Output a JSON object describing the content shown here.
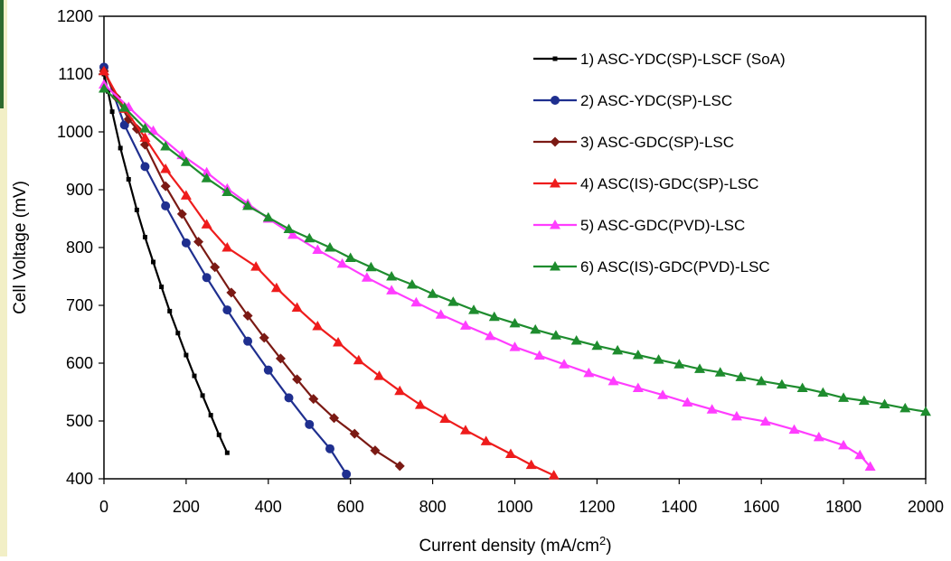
{
  "chart_data": {
    "type": "line",
    "xlabel": "Current density (mA/cm",
    "xlabel_sup": "2",
    "xlabel_end": ")",
    "ylabel": "Cell Voltage (mV)",
    "xlim": [
      0,
      2000
    ],
    "ylim": [
      400,
      1200
    ],
    "xticks": [
      0,
      200,
      400,
      600,
      800,
      1000,
      1200,
      1400,
      1600,
      1800,
      2000
    ],
    "yticks": [
      400,
      500,
      600,
      700,
      800,
      900,
      1000,
      1100,
      1200
    ],
    "grid": false,
    "legend_position": "top-right",
    "series": [
      {
        "name": "1) ASC-YDC(SP)-LSCF (SoA)",
        "color": "#000000",
        "marker": "square",
        "points": [
          [
            0,
            1100
          ],
          [
            10,
            1070
          ],
          [
            20,
            1035
          ],
          [
            40,
            972
          ],
          [
            60,
            918
          ],
          [
            80,
            865
          ],
          [
            100,
            818
          ],
          [
            120,
            775
          ],
          [
            140,
            732
          ],
          [
            160,
            690
          ],
          [
            180,
            652
          ],
          [
            200,
            614
          ],
          [
            220,
            578
          ],
          [
            240,
            544
          ],
          [
            260,
            510
          ],
          [
            280,
            476
          ],
          [
            300,
            445
          ]
        ]
      },
      {
        "name": "2) ASC-YDC(SP)-LSC",
        "color": "#1f2f8f",
        "marker": "circle",
        "points": [
          [
            0,
            1112
          ],
          [
            50,
            1012
          ],
          [
            100,
            940
          ],
          [
            150,
            872
          ],
          [
            200,
            808
          ],
          [
            250,
            748
          ],
          [
            300,
            692
          ],
          [
            350,
            638
          ],
          [
            400,
            588
          ],
          [
            450,
            540
          ],
          [
            500,
            494
          ],
          [
            550,
            452
          ],
          [
            590,
            408
          ]
        ]
      },
      {
        "name": "3) ASC-GDC(SP)-LSC",
        "color": "#7b1a14",
        "marker": "diamond",
        "points": [
          [
            0,
            1105
          ],
          [
            30,
            1060
          ],
          [
            60,
            1022
          ],
          [
            80,
            1005
          ],
          [
            100,
            978
          ],
          [
            150,
            906
          ],
          [
            190,
            858
          ],
          [
            230,
            810
          ],
          [
            270,
            766
          ],
          [
            310,
            722
          ],
          [
            350,
            682
          ],
          [
            390,
            644
          ],
          [
            430,
            608
          ],
          [
            470,
            572
          ],
          [
            510,
            538
          ],
          [
            560,
            505
          ],
          [
            610,
            478
          ],
          [
            660,
            449
          ],
          [
            720,
            422
          ]
        ]
      },
      {
        "name": "4) ASC(IS)-GDC(SP)-LSC",
        "color": "#ee1c1c",
        "marker": "triangle",
        "points": [
          [
            0,
            1105
          ],
          [
            50,
            1040
          ],
          [
            100,
            990
          ],
          [
            150,
            936
          ],
          [
            200,
            890
          ],
          [
            250,
            840
          ],
          [
            300,
            800
          ],
          [
            370,
            767
          ],
          [
            420,
            730
          ],
          [
            470,
            696
          ],
          [
            520,
            664
          ],
          [
            570,
            636
          ],
          [
            620,
            605
          ],
          [
            670,
            578
          ],
          [
            720,
            552
          ],
          [
            770,
            528
          ],
          [
            830,
            504
          ],
          [
            880,
            484
          ],
          [
            930,
            465
          ],
          [
            990,
            443
          ],
          [
            1040,
            424
          ],
          [
            1095,
            406
          ]
        ]
      },
      {
        "name": "5) ASC-GDC(PVD)-LSC",
        "color": "#ff3dff",
        "marker": "triangle",
        "points": [
          [
            0,
            1082
          ],
          [
            60,
            1043
          ],
          [
            120,
            1002
          ],
          [
            190,
            960
          ],
          [
            250,
            930
          ],
          [
            300,
            902
          ],
          [
            350,
            876
          ],
          [
            400,
            850
          ],
          [
            460,
            822
          ],
          [
            520,
            796
          ],
          [
            580,
            772
          ],
          [
            640,
            748
          ],
          [
            700,
            726
          ],
          [
            760,
            705
          ],
          [
            820,
            684
          ],
          [
            880,
            665
          ],
          [
            940,
            647
          ],
          [
            1000,
            628
          ],
          [
            1060,
            613
          ],
          [
            1120,
            598
          ],
          [
            1180,
            583
          ],
          [
            1240,
            569
          ],
          [
            1300,
            557
          ],
          [
            1360,
            545
          ],
          [
            1420,
            532
          ],
          [
            1480,
            520
          ],
          [
            1540,
            508
          ],
          [
            1610,
            499
          ],
          [
            1680,
            485
          ],
          [
            1740,
            472
          ],
          [
            1800,
            458
          ],
          [
            1840,
            441
          ],
          [
            1865,
            421
          ]
        ]
      },
      {
        "name": "6) ASC(IS)-GDC(PVD)-LSC",
        "color": "#1e8c2e",
        "marker": "triangle",
        "points": [
          [
            0,
            1075
          ],
          [
            50,
            1042
          ],
          [
            100,
            1006
          ],
          [
            150,
            975
          ],
          [
            200,
            948
          ],
          [
            250,
            920
          ],
          [
            300,
            896
          ],
          [
            350,
            872
          ],
          [
            400,
            852
          ],
          [
            450,
            832
          ],
          [
            500,
            816
          ],
          [
            550,
            800
          ],
          [
            600,
            782
          ],
          [
            650,
            766
          ],
          [
            700,
            750
          ],
          [
            750,
            736
          ],
          [
            800,
            720
          ],
          [
            850,
            706
          ],
          [
            900,
            692
          ],
          [
            950,
            680
          ],
          [
            1000,
            669
          ],
          [
            1050,
            658
          ],
          [
            1100,
            648
          ],
          [
            1150,
            639
          ],
          [
            1200,
            630
          ],
          [
            1250,
            622
          ],
          [
            1300,
            614
          ],
          [
            1350,
            606
          ],
          [
            1400,
            598
          ],
          [
            1450,
            590
          ],
          [
            1500,
            584
          ],
          [
            1550,
            576
          ],
          [
            1600,
            569
          ],
          [
            1650,
            563
          ],
          [
            1700,
            557
          ],
          [
            1750,
            549
          ],
          [
            1800,
            540
          ],
          [
            1850,
            535
          ],
          [
            1900,
            529
          ],
          [
            1950,
            522
          ],
          [
            2000,
            516
          ]
        ]
      }
    ]
  }
}
